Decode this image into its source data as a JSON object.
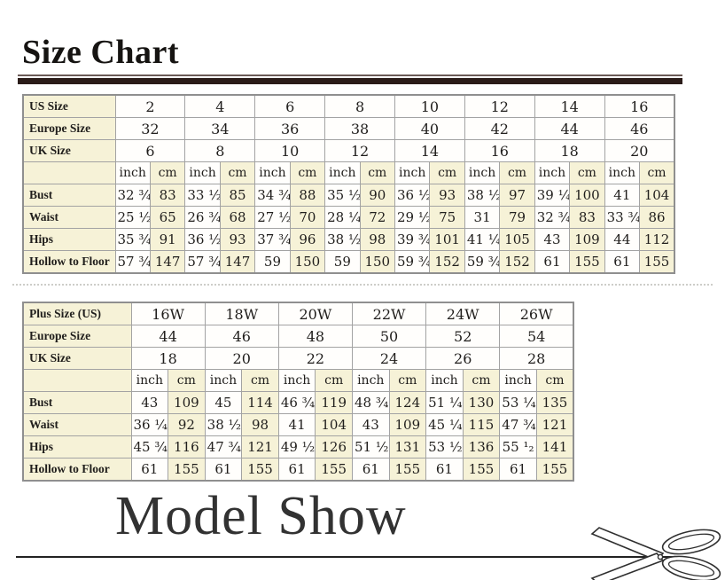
{
  "page": {
    "title": "Size Chart",
    "section2_title": "Model Show"
  },
  "colors": {
    "accent_bar": "#2b1c19",
    "cell_cream": "#f6f2d7",
    "table_border": "#a3a3a3"
  },
  "size_chart": {
    "regular": {
      "header_rows": [
        {
          "label": "US Size",
          "sizes": [
            "2",
            "4",
            "6",
            "8",
            "10",
            "12",
            "14",
            "16"
          ]
        },
        {
          "label": "Europe Size",
          "sizes": [
            "32",
            "34",
            "36",
            "38",
            "40",
            "42",
            "44",
            "46"
          ]
        },
        {
          "label": "UK Size",
          "sizes": [
            "6",
            "8",
            "10",
            "12",
            "14",
            "16",
            "18",
            "20"
          ]
        }
      ],
      "units": [
        "inch",
        "cm"
      ],
      "rows": [
        {
          "label": "Bust",
          "values": [
            "32 ¾",
            "83",
            "33 ½",
            "85",
            "34 ¾",
            "88",
            "35 ½",
            "90",
            "36 ½",
            "93",
            "38 ½",
            "97",
            "39 ¼",
            "100",
            "41",
            "104"
          ]
        },
        {
          "label": "Waist",
          "values": [
            "25 ½",
            "65",
            "26 ¾",
            "68",
            "27 ½",
            "70",
            "28 ¼",
            "72",
            "29 ½",
            "75",
            "31",
            "79",
            "32 ¾",
            "83",
            "33 ¾",
            "86"
          ]
        },
        {
          "label": "Hips",
          "values": [
            "35 ¾",
            "91",
            "36 ½",
            "93",
            "37 ¾",
            "96",
            "38 ½",
            "98",
            "39 ¾",
            "101",
            "41 ¼",
            "105",
            "43",
            "109",
            "44",
            "112"
          ]
        },
        {
          "label": "Hollow to Floor",
          "values": [
            "57 ¾",
            "147",
            "57 ¾",
            "147",
            "59",
            "150",
            "59",
            "150",
            "59 ¾",
            "152",
            "59 ¾",
            "152",
            "61",
            "155",
            "61",
            "155"
          ]
        }
      ]
    },
    "plus": {
      "header_rows": [
        {
          "label": "Plus Size (US)",
          "sizes": [
            "16W",
            "18W",
            "20W",
            "22W",
            "24W",
            "26W"
          ]
        },
        {
          "label": "Europe Size",
          "sizes": [
            "44",
            "46",
            "48",
            "50",
            "52",
            "54"
          ]
        },
        {
          "label": "UK Size",
          "sizes": [
            "18",
            "20",
            "22",
            "24",
            "26",
            "28"
          ]
        }
      ],
      "units": [
        "inch",
        "cm"
      ],
      "rows": [
        {
          "label": "Bust",
          "values": [
            "43",
            "109",
            "45",
            "114",
            "46 ¾",
            "119",
            "48 ¾",
            "124",
            "51 ¼",
            "130",
            "53 ¼",
            "135"
          ]
        },
        {
          "label": "Waist",
          "values": [
            "36 ¼",
            "92",
            "38 ½",
            "98",
            "41",
            "104",
            "43",
            "109",
            "45 ¼",
            "115",
            "47 ¾",
            "121"
          ]
        },
        {
          "label": "Hips",
          "values": [
            "45 ¾",
            "116",
            "47 ¾",
            "121",
            "49 ½",
            "126",
            "51 ½",
            "131",
            "53 ½",
            "136",
            "55 ¹₂",
            "141"
          ]
        },
        {
          "label": "Hollow to Floor",
          "values": [
            "61",
            "155",
            "61",
            "155",
            "61",
            "155",
            "61",
            "155",
            "61",
            "155",
            "61",
            "155"
          ]
        }
      ]
    }
  }
}
